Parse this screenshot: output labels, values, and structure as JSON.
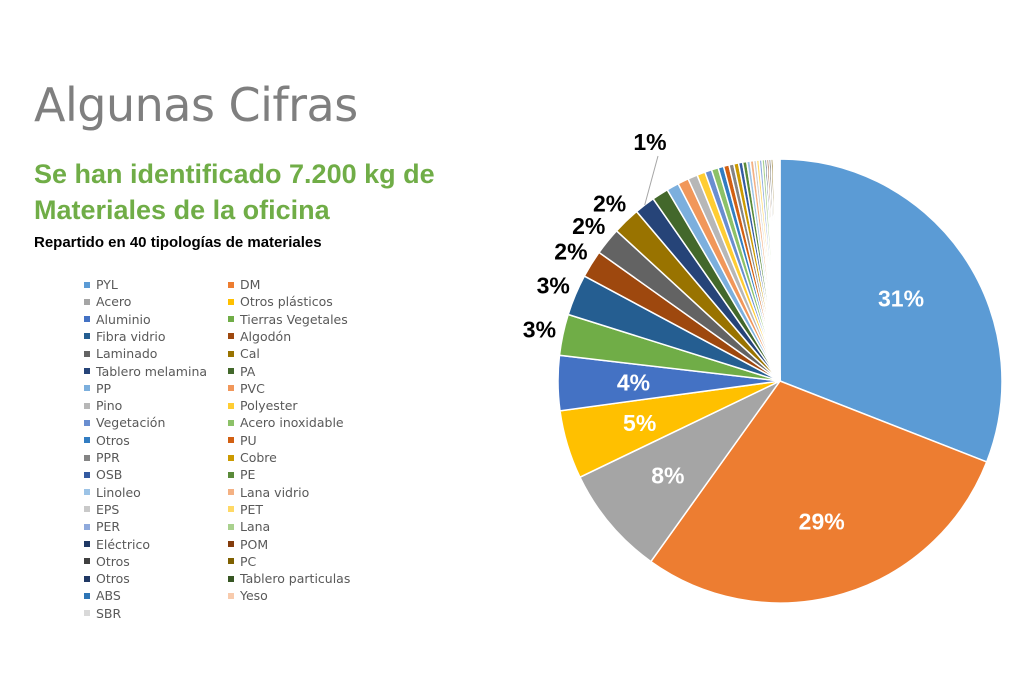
{
  "header": {
    "title": "Algunas Cifras",
    "subtitle": "Se han identificado 7.200 kg de Materiales de la oficina",
    "caption": "Repartido en 40 tipologías de materiales"
  },
  "chart_data": {
    "type": "pie",
    "legend_position": "left",
    "slices": [
      {
        "name": "PYL",
        "value": 31,
        "color": "#5b9bd5"
      },
      {
        "name": "DM",
        "value": 29,
        "color": "#ed7d31"
      },
      {
        "name": "Acero",
        "value": 8,
        "color": "#a5a5a5"
      },
      {
        "name": "Otros plásticos",
        "value": 5,
        "color": "#ffc000"
      },
      {
        "name": "Aluminio",
        "value": 4,
        "color": "#4472c4"
      },
      {
        "name": "Tierras Vegetales",
        "value": 3,
        "color": "#70ad47"
      },
      {
        "name": "Fibra vidrio",
        "value": 3,
        "color": "#255e91"
      },
      {
        "name": "Algodón",
        "value": 2,
        "color": "#9e480e"
      },
      {
        "name": "Laminado",
        "value": 2,
        "color": "#636363"
      },
      {
        "name": "Cal",
        "value": 2,
        "color": "#997300"
      },
      {
        "name": "Tablero melamina",
        "value": 1.5,
        "color": "#264478"
      },
      {
        "name": "PA",
        "value": 1.2,
        "color": "#43682b"
      },
      {
        "name": "PP",
        "value": 0.9,
        "color": "#7cafdd"
      },
      {
        "name": "PVC",
        "value": 0.8,
        "color": "#f1975a"
      },
      {
        "name": "Pino",
        "value": 0.7,
        "color": "#b7b7b7"
      },
      {
        "name": "Polyester",
        "value": 0.6,
        "color": "#ffcd33"
      },
      {
        "name": "Vegetación",
        "value": 0.5,
        "color": "#698ed0"
      },
      {
        "name": "Acero inoxidable",
        "value": 0.5,
        "color": "#8cc168"
      },
      {
        "name": "Otros",
        "value": 0.4,
        "color": "#327dc2"
      },
      {
        "name": "PU",
        "value": 0.4,
        "color": "#d26012"
      },
      {
        "name": "PPR",
        "value": 0.35,
        "color": "#848484"
      },
      {
        "name": "Cobre",
        "value": 0.35,
        "color": "#cc9a00"
      },
      {
        "name": "OSB",
        "value": 0.3,
        "color": "#335aa1"
      },
      {
        "name": "PE",
        "value": 0.3,
        "color": "#5a8a39"
      },
      {
        "name": "Linoleo",
        "value": 0.25,
        "color": "#9cc3e6"
      },
      {
        "name": "Lana vidrio",
        "value": 0.25,
        "color": "#f4b183"
      },
      {
        "name": "EPS",
        "value": 0.2,
        "color": "#c9c9c9"
      },
      {
        "name": "PET",
        "value": 0.2,
        "color": "#ffd966"
      },
      {
        "name": "PER",
        "value": 0.2,
        "color": "#8faadc"
      },
      {
        "name": "Lana",
        "value": 0.2,
        "color": "#a9d18e"
      },
      {
        "name": "Eléctrico",
        "value": 0.15,
        "color": "#1f3864"
      },
      {
        "name": "POM",
        "value": 0.15,
        "color": "#843c0c"
      },
      {
        "name": "Otros",
        "value": 0.15,
        "color": "#404040"
      },
      {
        "name": "PC",
        "value": 0.15,
        "color": "#7f6000"
      },
      {
        "name": "Otros",
        "value": 0.1,
        "color": "#203864"
      },
      {
        "name": "Tablero particulas",
        "value": 0.1,
        "color": "#375623"
      },
      {
        "name": "ABS",
        "value": 0.1,
        "color": "#2e75b6"
      },
      {
        "name": "Yeso",
        "value": 0.1,
        "color": "#f8cbad"
      },
      {
        "name": "SBR",
        "value": 0.1,
        "color": "#d9d9d9"
      }
    ],
    "labels": [
      {
        "slice": 0,
        "text": "31%",
        "color": "#ffffff"
      },
      {
        "slice": 1,
        "text": "29%",
        "color": "#ffffff"
      },
      {
        "slice": 2,
        "text": "8%",
        "color": "#ffffff"
      },
      {
        "slice": 3,
        "text": "5%",
        "color": "#ffffff"
      },
      {
        "slice": 4,
        "text": "4%",
        "color": "#ffffff"
      },
      {
        "slice": 5,
        "text": "3%",
        "color": "#000000"
      },
      {
        "slice": 6,
        "text": "3%",
        "color": "#000000"
      },
      {
        "slice": 7,
        "text": "2%",
        "color": "#000000"
      },
      {
        "slice": 8,
        "text": "2%",
        "color": "#000000"
      },
      {
        "slice": 9,
        "text": "2%",
        "color": "#000000"
      },
      {
        "slice": 10,
        "text": "1%",
        "color": "#000000"
      }
    ]
  }
}
